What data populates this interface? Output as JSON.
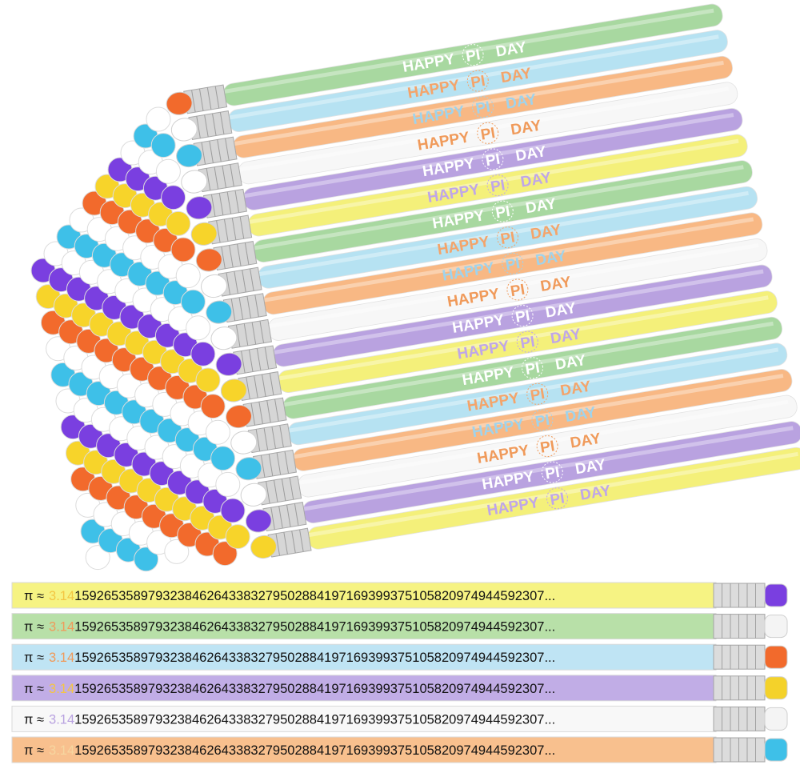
{
  "top_pencils": [
    {
      "words": [
        "HAPPY",
        "PI",
        "DAY"
      ]
    },
    {
      "words": [
        "HAPPY",
        "PI",
        "DAY"
      ]
    },
    {
      "words": [
        "HAPPY",
        "PI",
        "DAY"
      ]
    },
    {
      "words": [
        "HAPPY",
        "PI",
        "DAY"
      ]
    },
    {
      "words": [
        "HAPPY",
        "PI",
        "DAY"
      ]
    },
    {
      "words": [
        "HAPPY",
        "PI",
        "DAY"
      ]
    },
    {
      "words": [
        "HAPPY",
        "PI",
        "DAY"
      ]
    },
    {
      "words": [
        "HAPPY",
        "PI",
        "DAY"
      ]
    },
    {
      "words": [
        "HAPPY",
        "PI",
        "DAY"
      ]
    },
    {
      "words": [
        "HAPPY",
        "PI",
        "DAY"
      ]
    },
    {
      "words": [
        "HAPPY",
        "PI",
        "DAY"
      ]
    },
    {
      "words": [
        "HAPPY",
        "PI",
        "DAY"
      ]
    },
    {
      "words": [
        "HAPPY",
        "PI",
        "DAY"
      ]
    },
    {
      "words": [
        "HAPPY",
        "PI",
        "DAY"
      ]
    },
    {
      "words": [
        "HAPPY",
        "PI",
        "DAY"
      ]
    },
    {
      "words": [
        "HAPPY",
        "PI",
        "DAY"
      ]
    },
    {
      "words": [
        "HAPPY",
        "PI",
        "DAY"
      ]
    },
    {
      "words": [
        "HAPPY",
        "PI",
        "DAY"
      ]
    }
  ],
  "bottom_pencils": [
    {
      "prefix": "π ≈",
      "lead": "3.14",
      "digits": "1592653589793238462643383279502884197169399375105820974944592307..."
    },
    {
      "prefix": "π ≈",
      "lead": "3.14",
      "digits": "1592653589793238462643383279502884197169399375105820974944592307..."
    },
    {
      "prefix": "π ≈",
      "lead": "3.14",
      "digits": "1592653589793238462643383279502884197169399375105820974944592307..."
    },
    {
      "prefix": "π ≈",
      "lead": "3.14",
      "digits": "1592653589793238462643383279502884197169399375105820974944592307..."
    },
    {
      "prefix": "π ≈",
      "lead": "3.14",
      "digits": "1592653589793238462643383279502884197169399375105820974944592307..."
    },
    {
      "prefix": "π ≈",
      "lead": "3.14",
      "digits": "1592653589793238462643383279502884197169399375105820974944592307..."
    }
  ]
}
